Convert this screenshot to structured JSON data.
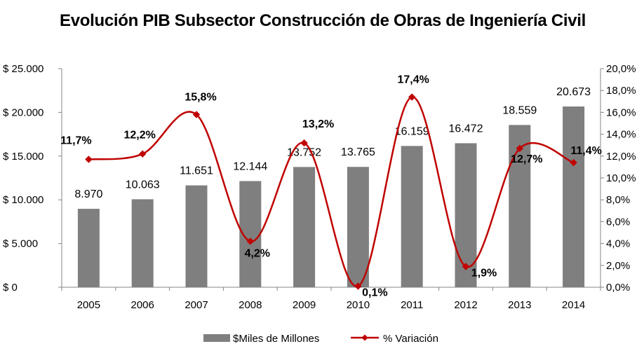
{
  "chart_data": {
    "type": "bar",
    "title": "Evolución PIB Subsector Construcción de Obras de Ingeniería Civil",
    "categories": [
      "2005",
      "2006",
      "2007",
      "2008",
      "2009",
      "2010",
      "2011",
      "2012",
      "2013",
      "2014"
    ],
    "series": [
      {
        "name": "$Miles de Millones",
        "type": "bar",
        "axis": "left",
        "values": [
          8970,
          10063,
          11651,
          12144,
          13752,
          13765,
          16159,
          16472,
          18559,
          20673
        ],
        "labels": [
          "8.970",
          "10.063",
          "11.651",
          "12.144",
          "13.752",
          "13.765",
          "16.159",
          "16.472",
          "18.559",
          "20.673"
        ],
        "color": "#7f7f7f"
      },
      {
        "name": "% Variación",
        "type": "line",
        "axis": "right",
        "smooth": true,
        "values": [
          11.7,
          12.2,
          15.8,
          4.2,
          13.2,
          0.1,
          17.4,
          1.9,
          12.7,
          11.4
        ],
        "labels": [
          "11,7%",
          "12,2%",
          "15,8%",
          "4,2%",
          "13,2%",
          "0,1%",
          "17,4%",
          "1,9%",
          "12,7%",
          "11,4%"
        ],
        "color": "#c00000"
      }
    ],
    "y_left": {
      "range": [
        0,
        25000
      ],
      "ticks": [
        0,
        5000,
        10000,
        15000,
        20000,
        25000
      ],
      "tick_labels": [
        "$ 0",
        "$ 5.000",
        "$ 10.000",
        "$ 15.000",
        "$ 20.000",
        "$ 25.000"
      ]
    },
    "y_right": {
      "range": [
        0,
        20
      ],
      "ticks": [
        0,
        2,
        4,
        6,
        8,
        10,
        12,
        14,
        16,
        18,
        20
      ],
      "tick_labels": [
        "0,0%",
        "2,0%",
        "4,0%",
        "6,0%",
        "8,0%",
        "10,0%",
        "12,0%",
        "14,0%",
        "16,0%",
        "18,0%",
        "20,0%"
      ]
    },
    "grid": false,
    "legend": {
      "position": "bottom",
      "items": [
        "$Miles de Millones",
        "% Variación"
      ]
    }
  }
}
